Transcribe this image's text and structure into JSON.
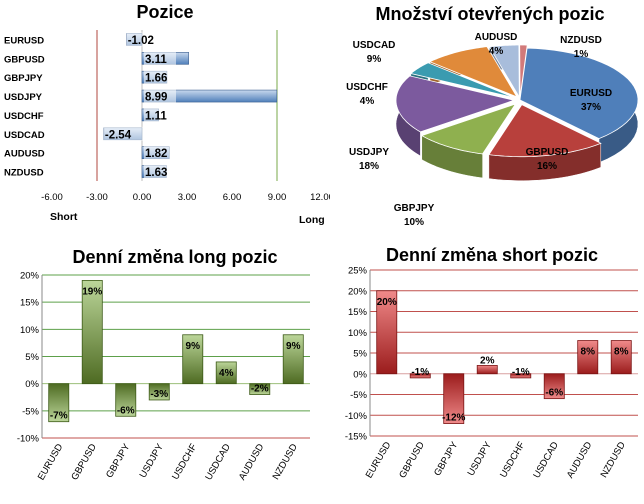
{
  "chart_data": [
    {
      "type": "bar",
      "orientation": "horizontal",
      "title": "Pozice",
      "categories": [
        "EURUSD",
        "GBPUSD",
        "GBPJPY",
        "USDJPY",
        "USDCHF",
        "USDCAD",
        "AUDUSD",
        "NZDUSD"
      ],
      "values": [
        -1.02,
        3.11,
        1.66,
        8.99,
        1.11,
        -2.54,
        1.82,
        1.63
      ],
      "value_labels": [
        "-1.02",
        "3.11",
        "1.66",
        "8.99",
        "1.11",
        "-2.54",
        "1.82",
        "1.63"
      ],
      "xlim": [
        -6,
        12
      ],
      "xticks": [
        "-6.00",
        "-3.00",
        "0.00",
        "3.00",
        "6.00",
        "9.00",
        "12.00"
      ],
      "left_label": "Short",
      "right_label": "Long",
      "colors": {
        "bar": "#4f7fba",
        "bar_light": "#c9d9ee",
        "short_line": "#b0473f",
        "long_line": "#7aa84a"
      }
    },
    {
      "type": "pie",
      "title": "Množství otevřených pozic",
      "slices": [
        {
          "label": "EURUSD",
          "value": 37,
          "text": "37%",
          "color": "#4f7fba"
        },
        {
          "label": "GBPUSD",
          "value": 16,
          "text": "16%",
          "color": "#b8403c"
        },
        {
          "label": "GBPJPY",
          "value": 10,
          "text": "10%",
          "color": "#8fb04f"
        },
        {
          "label": "USDJPY",
          "value": 18,
          "text": "18%",
          "color": "#7c5a9e"
        },
        {
          "label": "USDCHF",
          "value": 4,
          "text": "4%",
          "color": "#3a9bb0"
        },
        {
          "label": "USDCAD",
          "value": 9,
          "text": "9%",
          "color": "#e08a3a"
        },
        {
          "label": "AUDUSD",
          "value": 4,
          "text": "4%",
          "color": "#a8bddb"
        },
        {
          "label": "NZDUSD",
          "value": 1,
          "text": "1%",
          "color": "#d27a7a"
        }
      ]
    },
    {
      "type": "bar",
      "title": "Denní změna long pozic",
      "categories": [
        "EURUSD",
        "GBPUSD",
        "GBPJPY",
        "USDJPY",
        "USDCHF",
        "USDCAD",
        "AUDUSD",
        "NZDUSD"
      ],
      "values": [
        -7,
        19,
        -6,
        -3,
        9,
        4,
        -2,
        9
      ],
      "value_labels": [
        "-7%",
        "19%",
        "-6%",
        "-3%",
        "9%",
        "4%",
        "-2%",
        "9%"
      ],
      "ylim": [
        -10,
        20
      ],
      "yticks": [
        "-10%",
        "-5%",
        "0%",
        "5%",
        "10%",
        "15%",
        "20%"
      ],
      "colors": {
        "bar_dark": "#4e6b22",
        "bar_light": "#bcd69a",
        "grid": "#5da04a",
        "bottom": "#c0504d"
      }
    },
    {
      "type": "bar",
      "title": "Denní změna short pozic",
      "categories": [
        "EURUSD",
        "GBPUSD",
        "GBPJPY",
        "USDJPY",
        "USDCHF",
        "USDCAD",
        "AUDUSD",
        "NZDUSD"
      ],
      "values": [
        20,
        -1,
        -12,
        2,
        -1,
        -6,
        8,
        8
      ],
      "value_labels": [
        "20%",
        "-1%",
        "-12%",
        "2%",
        "-1%",
        "-6%",
        "8%",
        "8%"
      ],
      "ylim": [
        -15,
        25
      ],
      "yticks": [
        "-15%",
        "-10%",
        "-5%",
        "0%",
        "5%",
        "10%",
        "15%",
        "20%",
        "25%"
      ],
      "colors": {
        "bar_dark": "#9b1c1c",
        "bar_light": "#f08a8a",
        "grid": "#c0504d"
      }
    }
  ]
}
